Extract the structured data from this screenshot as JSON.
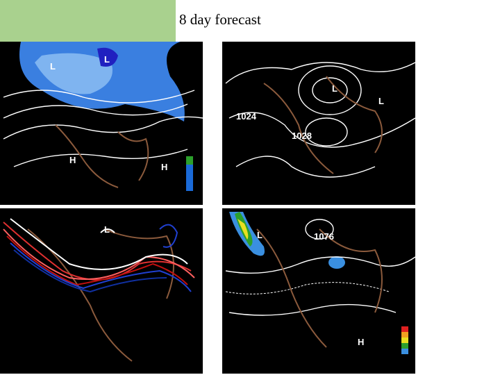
{
  "title": "8 day forecast",
  "panels": [
    {
      "labels": [
        "L",
        "L",
        "H",
        "H"
      ]
    },
    {
      "labels": [
        "L",
        "L",
        "1024",
        "1028"
      ]
    },
    {
      "labels": [
        "L"
      ]
    },
    {
      "labels": [
        "L",
        "1076",
        "H"
      ]
    }
  ]
}
